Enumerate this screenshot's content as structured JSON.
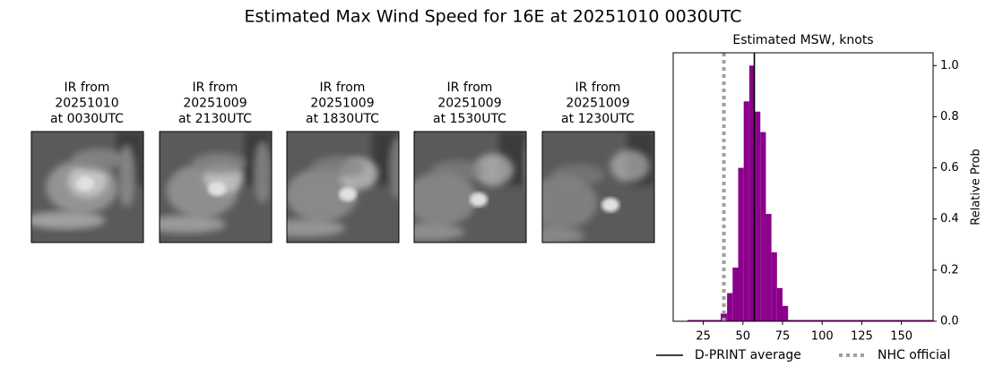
{
  "title": "Estimated Max Wind Speed for 16E at 20251010 0030UTC",
  "panels": [
    {
      "lines": [
        "IR from",
        "20251010",
        "at 0030UTC"
      ]
    },
    {
      "lines": [
        "IR from",
        "20251009",
        "at 2130UTC"
      ]
    },
    {
      "lines": [
        "IR from",
        "20251009",
        "at 1830UTC"
      ]
    },
    {
      "lines": [
        "IR from",
        "20251009",
        "at 1530UTC"
      ]
    },
    {
      "lines": [
        "IR from",
        "20251009",
        "at 1230UTC"
      ]
    }
  ],
  "chart_data": {
    "type": "histogram",
    "title": "Estimated MSW, knots",
    "ylabel": "Relative Prob",
    "bins": [
      15,
      36,
      40,
      43.5,
      47,
      50.5,
      54,
      57.5,
      61,
      64.5,
      68,
      71.5,
      75,
      78.5,
      170
    ],
    "values": [
      0.005,
      0.03,
      0.11,
      0.21,
      0.6,
      0.86,
      1.0,
      0.82,
      0.74,
      0.42,
      0.27,
      0.13,
      0.06,
      0.005
    ],
    "color": "#8b008b",
    "xlim": [
      6,
      170
    ],
    "ylim": [
      0,
      1.05
    ],
    "xticks": [
      25,
      50,
      75,
      100,
      125,
      150
    ],
    "yticks": [
      {
        "value": 0,
        "label": "0.0"
      },
      {
        "value": 0.2,
        "label": "0.2"
      },
      {
        "value": 0.4,
        "label": "0.4"
      },
      {
        "value": 0.6,
        "label": "0.6"
      },
      {
        "value": 0.8,
        "label": "0.8"
      },
      {
        "value": 1,
        "label": "1.0"
      }
    ],
    "vlines": [
      {
        "name": "D-PRINT average",
        "value": 57.2,
        "color": "#000000",
        "style": "solid"
      },
      {
        "name": "NHC official",
        "value": 38,
        "color": "#a0a0a0",
        "style": "dotted"
      }
    ]
  }
}
